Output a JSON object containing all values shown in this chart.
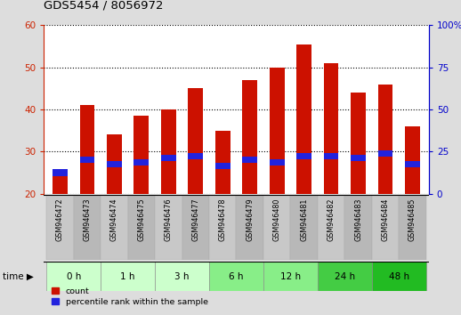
{
  "title": "GDS5454 / 8056972",
  "samples": [
    "GSM946472",
    "GSM946473",
    "GSM946474",
    "GSM946475",
    "GSM946476",
    "GSM946477",
    "GSM946478",
    "GSM946479",
    "GSM946480",
    "GSM946481",
    "GSM946482",
    "GSM946483",
    "GSM946484",
    "GSM946485"
  ],
  "count_values": [
    25.5,
    41.0,
    34.0,
    38.5,
    40.0,
    45.0,
    35.0,
    47.0,
    50.0,
    55.5,
    51.0,
    44.0,
    46.0,
    36.0
  ],
  "percentile_values": [
    25.0,
    28.0,
    27.0,
    27.5,
    28.5,
    29.0,
    26.5,
    28.0,
    27.5,
    29.0,
    29.0,
    28.5,
    29.5,
    27.0
  ],
  "bar_bottom": 20,
  "time_groups": [
    {
      "label": "0 h",
      "indices": [
        0,
        1
      ]
    },
    {
      "label": "1 h",
      "indices": [
        2,
        3
      ]
    },
    {
      "label": "3 h",
      "indices": [
        4,
        5
      ]
    },
    {
      "label": "6 h",
      "indices": [
        6,
        7
      ]
    },
    {
      "label": "12 h",
      "indices": [
        8,
        9
      ]
    },
    {
      "label": "24 h",
      "indices": [
        10,
        11
      ]
    },
    {
      "label": "48 h",
      "indices": [
        12,
        13
      ]
    }
  ],
  "time_group_colors": [
    "#ccffcc",
    "#ccffcc",
    "#ccffcc",
    "#88ee88",
    "#88ee88",
    "#44cc44",
    "#22bb22"
  ],
  "ylim_left": [
    20,
    60
  ],
  "ylim_right": [
    0,
    100
  ],
  "yticks_left": [
    20,
    30,
    40,
    50,
    60
  ],
  "yticks_right": [
    0,
    25,
    50,
    75,
    100
  ],
  "left_tick_color": "#cc2200",
  "right_tick_color": "#0000cc",
  "bar_color_red": "#cc1100",
  "bar_color_blue": "#2222dd",
  "grid_color": "#000000",
  "bg_plot": "#ffffff",
  "bg_fig": "#dddddd",
  "legend_count_label": "count",
  "legend_pct_label": "percentile rank within the sample",
  "bar_width": 0.55,
  "blue_bar_height": 1.5
}
